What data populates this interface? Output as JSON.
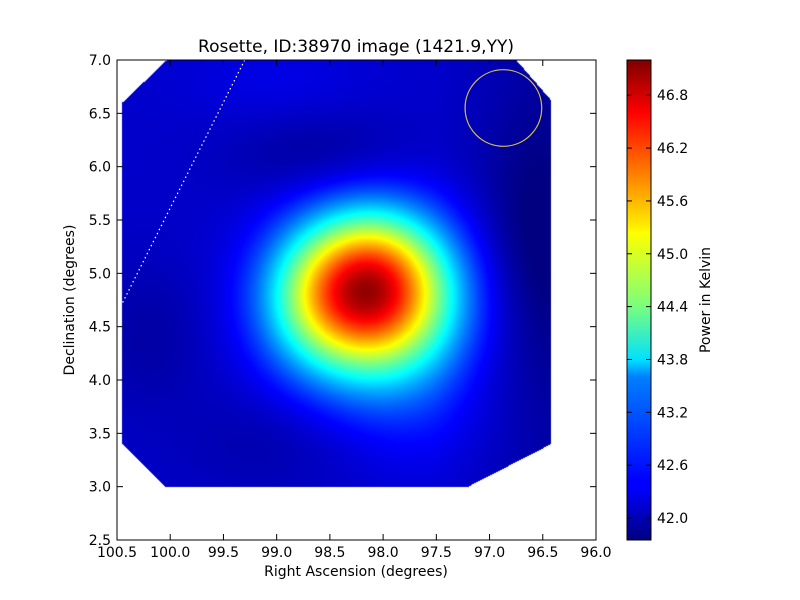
{
  "chart_data": {
    "type": "heatmap",
    "title": "Rosette, ID:38970 image (1421.9,YY)",
    "xlabel": "Right Ascension (degrees)",
    "ylabel": "Declination (degrees)",
    "xlim": [
      100.5,
      96.0
    ],
    "ylim": [
      2.5,
      7.0
    ],
    "x_reversed": true,
    "xticks": [
      100.5,
      100.0,
      99.5,
      99.0,
      98.5,
      98.0,
      97.5,
      97.0,
      96.5,
      96.0
    ],
    "xtick_labels": [
      "100.5",
      "100.0",
      "99.5",
      "99.0",
      "98.5",
      "98.0",
      "97.5",
      "97.0",
      "96.5",
      "96.0"
    ],
    "yticks": [
      2.5,
      3.0,
      3.5,
      4.0,
      4.5,
      5.0,
      5.5,
      6.0,
      6.5,
      7.0
    ],
    "ytick_labels": [
      "2.5",
      "3.0",
      "3.5",
      "4.0",
      "4.5",
      "5.0",
      "5.5",
      "6.0",
      "6.5",
      "7.0"
    ],
    "colorbar": {
      "label": "Power in Kelvin",
      "colormap": "jet",
      "min": 41.75,
      "max": 47.2,
      "ticks": [
        42.0,
        42.6,
        43.2,
        43.8,
        44.4,
        45.0,
        45.6,
        46.2,
        46.8
      ],
      "tick_labels": [
        "42.0",
        "42.6",
        "43.2",
        "43.8",
        "44.4",
        "45.0",
        "45.6",
        "46.2",
        "46.8"
      ]
    },
    "background_level": 42.15,
    "footprint_polygon": [
      [
        100.05,
        3.0
      ],
      [
        97.2,
        3.0
      ],
      [
        96.42,
        3.4
      ],
      [
        96.42,
        6.62
      ],
      [
        96.75,
        7.0
      ],
      [
        100.03,
        7.0
      ],
      [
        100.45,
        6.6
      ],
      [
        100.45,
        3.4
      ]
    ],
    "emission_peak": {
      "ra": 98.12,
      "dec": 4.72,
      "value": 47.0
    },
    "emission_components": [
      {
        "ra": 98.12,
        "dec": 4.72,
        "sigma_ra": 0.55,
        "sigma_dec": 0.5,
        "amplitude": 4.0
      },
      {
        "ra": 98.1,
        "dec": 5.15,
        "sigma_ra": 0.45,
        "sigma_dec": 0.4,
        "amplitude": 1.2
      },
      {
        "ra": 98.7,
        "dec": 4.8,
        "sigma_ra": 0.35,
        "sigma_dec": 0.45,
        "amplitude": 0.6
      },
      {
        "ra": 98.6,
        "dec": 6.1,
        "sigma_ra": 0.6,
        "sigma_dec": 0.3,
        "amplitude": -0.25
      },
      {
        "ra": 96.6,
        "dec": 5.3,
        "sigma_ra": 0.35,
        "sigma_dec": 0.8,
        "amplitude": -0.3
      },
      {
        "ra": 100.2,
        "dec": 4.4,
        "sigma_ra": 0.4,
        "sigma_dec": 0.5,
        "amplitude": -0.2
      },
      {
        "ra": 99.1,
        "dec": 3.4,
        "sigma_ra": 0.6,
        "sigma_dec": 0.35,
        "amplitude": -0.15
      },
      {
        "ra": 97.7,
        "dec": 3.7,
        "sigma_ra": 0.5,
        "sigma_dec": 0.45,
        "amplitude": 0.25
      },
      {
        "ra": 99.0,
        "dec": 6.8,
        "sigma_ra": 0.6,
        "sigma_dec": 0.3,
        "amplitude": 0.15
      }
    ],
    "beam_circle": {
      "ra": 96.87,
      "dec": 6.55,
      "radius_deg": 0.36,
      "color": "#d4c24a"
    },
    "dotted_line": {
      "points": [
        [
          99.3,
          7.0
        ],
        [
          100.45,
          4.72
        ]
      ],
      "color": "#ffffff"
    },
    "grid": false,
    "legend": "none"
  },
  "colors": {
    "axes_border": "#000000",
    "background": "#ffffff"
  }
}
